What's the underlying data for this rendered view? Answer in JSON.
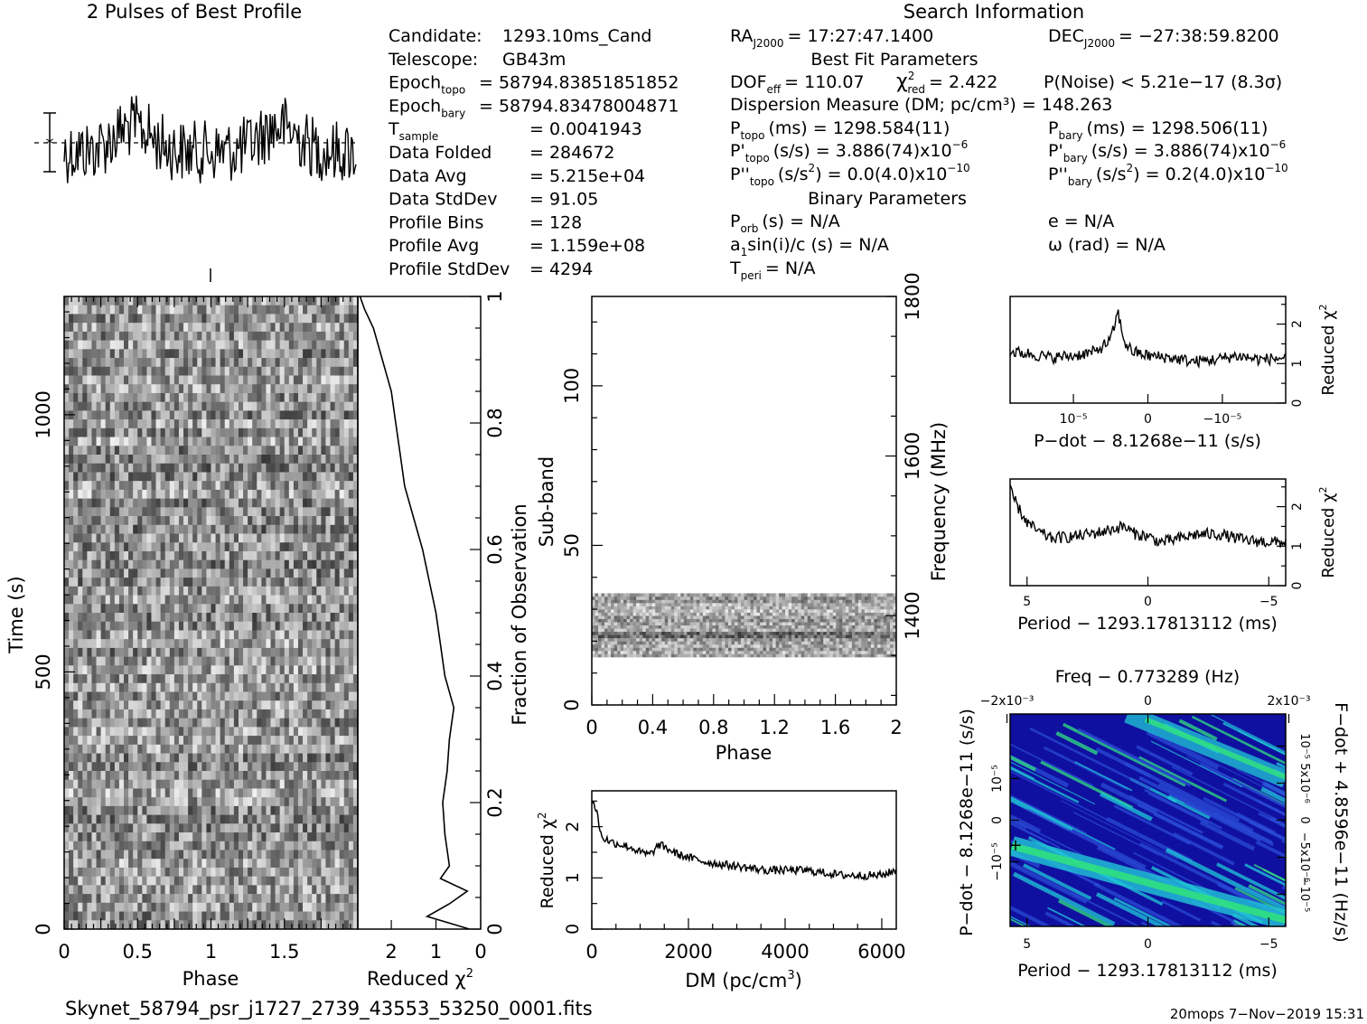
{
  "titles": {
    "profile": "2 Pulses of Best Profile",
    "search": "Search Information",
    "bestfit": "Best Fit Parameters",
    "binary": "Binary Parameters"
  },
  "info_left": [
    {
      "label": "Candidate:",
      "value": "1293.10ms_Cand"
    },
    {
      "label": "Telescope:",
      "value": "GB43m"
    },
    {
      "label": "Epoch",
      "sub": "topo",
      "value": "= 58794.83851851852"
    },
    {
      "label": "Epoch",
      "sub": "bary",
      "value": "= 58794.83478004871"
    },
    {
      "label": "T",
      "sub": "sample",
      "value": "=  0.0041943"
    },
    {
      "label": "Data Folded",
      "value": "=  284672"
    },
    {
      "label": "Data Avg",
      "value": "=  5.215e+04"
    },
    {
      "label": "Data StdDev",
      "value": "=  91.05"
    },
    {
      "label": "Profile Bins",
      "value": "=  128"
    },
    {
      "label": "Profile Avg",
      "value": "=  1.159e+08"
    },
    {
      "label": "Profile StdDev",
      "value": "=  4294"
    }
  ],
  "ra": {
    "label": "RA",
    "sub": "J2000",
    "value": "= 17:27:47.1400"
  },
  "dec": {
    "label": "DEC",
    "sub": "J2000",
    "value": "= −27:38:59.8200"
  },
  "dof": {
    "label": "DOF",
    "sub": "eff",
    "value": "= 110.07"
  },
  "chi2": {
    "label": "χ",
    "sup": "2",
    "sub": "red",
    "value": "= 2.422"
  },
  "pnoise": "P(Noise) < 5.21e−17   (8.3σ)",
  "dm_line": "Dispersion Measure (DM; pc/cm³) = 148.263",
  "periods": {
    "ptopo": "P  (ms) =  1298.584(11)",
    "pbary": "P  (ms) =  1298.506(11)",
    "pdtopo": "P'  (s/s) =  3.886(74)x10⁻⁶",
    "pdbary": "P'  (s/s) =  3.886(74)x10⁻⁶",
    "pddtopo": "P''  (s/s²) = 0.0(4.0)x10⁻¹⁰",
    "pddbary": "P''  (s/s²) =  0.2(4.0)x10⁻¹⁰",
    "sub_topo": "topo",
    "sub_bary": "bary"
  },
  "binary": {
    "porb": "P  (s) = N/A",
    "porb_sub": "orb",
    "a1": "a sin(i)/c (s) = N/A",
    "tperi": "T   = N/A",
    "tperi_sub": "peri",
    "e": "e = N/A",
    "omega": "ω (rad) = N/A"
  },
  "footer": {
    "filename": "Skynet_58794_psr_j1727_2739_43553_53250_0001.fits",
    "stamp": "20mops  7−Nov−2019 15:31"
  },
  "colors": {
    "ink": "#000000",
    "dark_blue": "#1010a0",
    "blue": "#2a4bd6",
    "cyan": "#20c8d8",
    "green": "#30e080"
  },
  "chart_data": [
    {
      "type": "line",
      "name": "profile",
      "xlim": [
        0,
        2
      ],
      "description_series": "two pulses of folded profile, 256 phase bins",
      "values": []
    },
    {
      "type": "heatmap",
      "name": "time-phase",
      "xlabel": "Phase",
      "ylabel": "Time (s)",
      "xlim": [
        0,
        2
      ],
      "ylim": [
        0,
        1230
      ],
      "xticks": [
        "0",
        "0.5",
        "1",
        "1.5"
      ],
      "yticks": [
        "0",
        "500",
        "1000"
      ],
      "right_ylabel": "Fraction of Observation",
      "right_yticks": [
        "0",
        "0.2",
        "0.4",
        "0.6",
        "0.8",
        "1"
      ]
    },
    {
      "type": "line",
      "name": "time-chi2",
      "xlabel": "Reduced χ²",
      "xlim": [
        2.75,
        0
      ],
      "xticks": [
        "2",
        "1",
        "0"
      ],
      "y": [
        0,
        0.02,
        0.04,
        0.06,
        0.08,
        0.1,
        0.15,
        0.2,
        0.25,
        0.3,
        0.35,
        0.4,
        0.45,
        0.5,
        0.55,
        0.6,
        0.65,
        0.7,
        0.75,
        0.8,
        0.85,
        0.9,
        0.95,
        0.98,
        1.0
      ],
      "x": [
        0.25,
        1.2,
        0.7,
        0.3,
        0.9,
        0.7,
        0.8,
        0.85,
        0.75,
        0.7,
        0.6,
        0.8,
        0.9,
        1.0,
        1.15,
        1.3,
        1.5,
        1.7,
        1.8,
        1.9,
        2.0,
        2.2,
        2.4,
        2.6,
        2.7
      ]
    },
    {
      "type": "heatmap",
      "name": "subband-phase",
      "xlabel": "Phase",
      "ylabel": "Sub-band",
      "right_ylabel": "Frequency (MHz)",
      "xlim": [
        0,
        2
      ],
      "ylim": [
        0,
        128
      ],
      "xticks": [
        "0",
        "0.4",
        "0.8",
        "1.2",
        "1.6",
        "2"
      ],
      "yticks": [
        "0",
        "50",
        "100"
      ],
      "right_yticks": [
        "1400",
        "1600",
        "1800"
      ],
      "band_range": [
        15,
        35
      ]
    },
    {
      "type": "line",
      "name": "dm-chi2",
      "xlabel": "DM (pc/cm³)",
      "ylabel": "Reduced χ²",
      "xlim": [
        0,
        6300
      ],
      "ylim": [
        0,
        2.7
      ],
      "xticks": [
        "0",
        "2000",
        "4000",
        "6000"
      ],
      "yticks": [
        "0",
        "1",
        "2"
      ],
      "x": [
        0,
        100,
        200,
        400,
        600,
        800,
        1000,
        1200,
        1400,
        1600,
        1800,
        2000,
        2400,
        2800,
        3200,
        3600,
        4000,
        4400,
        4800,
        5200,
        5600,
        6000,
        6300
      ],
      "y": [
        2.55,
        2.3,
        1.8,
        1.7,
        1.65,
        1.6,
        1.5,
        1.45,
        1.65,
        1.55,
        1.45,
        1.4,
        1.3,
        1.25,
        1.2,
        1.15,
        1.15,
        1.15,
        1.1,
        1.05,
        1.05,
        1.05,
        1.15
      ]
    },
    {
      "type": "line",
      "name": "pdot-chi2",
      "xlabel": "P-dot − 8.1268e-11 (s/s)",
      "ylabel": "Reduced χ²",
      "ylim": [
        0,
        2.7
      ],
      "yticks": [
        "0",
        "1",
        "2"
      ],
      "xticks": [
        "10⁻⁵",
        "0",
        "−10⁻⁵"
      ],
      "x": [
        -1.85e-05,
        -1.6e-05,
        -1.3e-05,
        -1e-05,
        -7e-06,
        -5e-06,
        -4e-06,
        -3.5e-06,
        -3e-06,
        -2e-06,
        0,
        3e-06,
        6e-06,
        9e-06,
        1.2e-05,
        1.5e-05,
        1.85e-05
      ],
      "y": [
        1.3,
        1.25,
        1.15,
        1.2,
        1.3,
        1.6,
        2.3,
        1.8,
        1.5,
        1.3,
        1.2,
        1.15,
        1.05,
        1.1,
        1.2,
        1.1,
        1.15
      ]
    },
    {
      "type": "line",
      "name": "period-chi2",
      "xlabel": "Period − 1293.17813112 (ms)",
      "ylabel": "Reduced χ²",
      "ylim": [
        0,
        2.7
      ],
      "yticks": [
        "0",
        "1",
        "2"
      ],
      "xticks": [
        "5",
        "0",
        "−5"
      ],
      "x": [
        5.7,
        5.3,
        5.0,
        4.5,
        4.0,
        3.0,
        2.0,
        1.0,
        0.5,
        0,
        -0.5,
        -1.0,
        -2.0,
        -3.0,
        -4.0,
        -5.0,
        -5.7
      ],
      "y": [
        2.4,
        1.9,
        1.6,
        1.35,
        1.2,
        1.25,
        1.35,
        1.5,
        1.3,
        1.25,
        1.1,
        1.15,
        1.3,
        1.3,
        1.15,
        1.1,
        1.1
      ]
    },
    {
      "type": "heatmap",
      "name": "period-pdot",
      "title": "Freq − 0.773289 (Hz)",
      "xlabel": "Period − 1293.17813112 (ms)",
      "ylabel": "P-dot − 8.1268e-11 (s/s)",
      "right_ylabel": "F-dot + 4.8596e-11 (Hz/s)",
      "xticks": [
        "5",
        "0",
        "−5"
      ],
      "top_xticks": [
        "−2x10⁻³",
        "0",
        "2x10⁻³"
      ],
      "yticks": [
        "10⁻⁵",
        "0",
        "−10⁻⁵"
      ],
      "right_yticks": [
        "−10⁻⁵",
        "−5x10⁻⁶",
        "0",
        "5x10⁻⁶",
        "10⁻⁵"
      ],
      "best_marker": {
        "period": 5.3,
        "pdot": 2.5e-06
      }
    }
  ]
}
